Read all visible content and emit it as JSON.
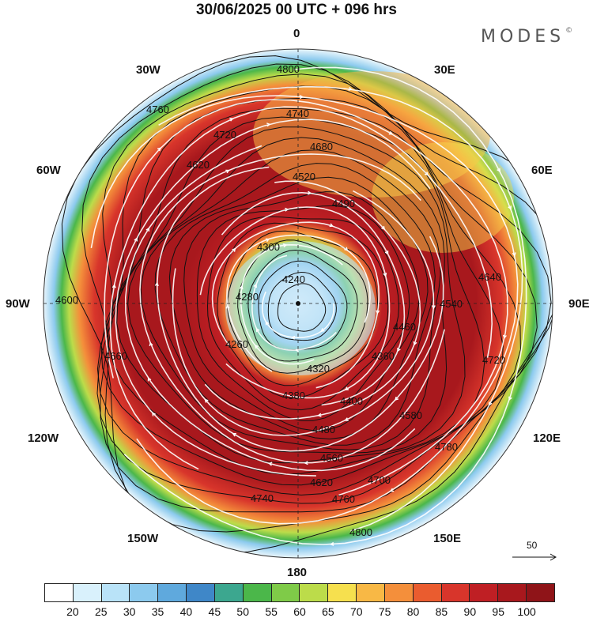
{
  "title": "30/06/2025  00 UTC  + 096 hrs",
  "brand": "MODES",
  "brand_mark": "©",
  "longitude_labels": {
    "lon0": "0",
    "lon30e": "30E",
    "lon60e": "60E",
    "lon90e": "90E",
    "lon120e": "120E",
    "lon150e": "150E",
    "lon180": "180",
    "lon150w": "150W",
    "lon120w": "120W",
    "lon90w": "90W",
    "lon60w": "60W",
    "lon30w": "30W"
  },
  "contour_labels": [
    "4800",
    "4760",
    "4740",
    "4720",
    "4680",
    "4620",
    "4520",
    "4490",
    "4300",
    "4240",
    "4280",
    "4260",
    "4320",
    "4360",
    "4380",
    "4400",
    "4460",
    "4480",
    "4540",
    "4560",
    "4580",
    "4620",
    "4640",
    "4700",
    "4720",
    "4740",
    "4760",
    "4780",
    "4800",
    "4600",
    "4660"
  ],
  "legend": {
    "colors": [
      "#ffffff",
      "#d9f1fc",
      "#b9e3f8",
      "#8ccaee",
      "#5fa9dd",
      "#3f87c8",
      "#3ca78f",
      "#4bb74a",
      "#7fcb48",
      "#bcdc4a",
      "#f6e04e",
      "#f8b845",
      "#f48f3b",
      "#ea5c2f",
      "#d8352b",
      "#bf1f24",
      "#a8181d",
      "#8f1418"
    ],
    "ticks": [
      "20",
      "25",
      "30",
      "35",
      "40",
      "45",
      "50",
      "55",
      "60",
      "65",
      "70",
      "75",
      "80",
      "85",
      "90",
      "95",
      "100"
    ]
  },
  "vector_reference": "50"
}
